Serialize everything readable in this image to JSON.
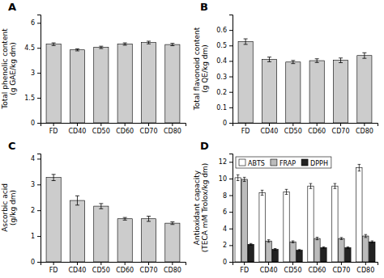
{
  "chart_data": [
    {
      "type": "bar",
      "title": "A",
      "ylabel": "Total phenolic content\n(g GAE/kg dm)",
      "categories": [
        "FD",
        "CD40",
        "CD50",
        "CD60",
        "CD70",
        "CD80"
      ],
      "values": [
        4.72,
        4.38,
        4.53,
        4.73,
        4.82,
        4.7
      ],
      "errors": [
        0.08,
        0.06,
        0.07,
        0.07,
        0.08,
        0.07
      ],
      "color": "#cccccc",
      "ylim": [
        0,
        6.5
      ],
      "yticks": [
        0,
        1.5,
        3,
        4.5,
        6
      ]
    },
    {
      "type": "bar",
      "title": "B",
      "ylabel": "Total flavonoid content\n(g QE/kg dm)",
      "categories": [
        "FD",
        "CD40",
        "CD50",
        "CD60",
        "CD70",
        "CD80"
      ],
      "values": [
        0.525,
        0.41,
        0.393,
        0.402,
        0.404,
        0.435
      ],
      "errors": [
        0.018,
        0.015,
        0.01,
        0.012,
        0.015,
        0.018
      ],
      "color": "#cccccc",
      "ylim": [
        0,
        0.7
      ],
      "yticks": [
        0,
        0.1,
        0.2,
        0.3,
        0.4,
        0.5,
        0.6
      ]
    },
    {
      "type": "bar",
      "title": "C",
      "ylabel": "Ascorbic acid\n(g/kg dm)",
      "categories": [
        "FD",
        "CD40",
        "CD50",
        "CD60",
        "CD70",
        "CD80"
      ],
      "values": [
        3.27,
        2.38,
        2.16,
        1.67,
        1.67,
        1.5
      ],
      "errors": [
        0.12,
        0.18,
        0.1,
        0.05,
        0.1,
        0.05
      ],
      "color": "#cccccc",
      "ylim": [
        0,
        4.2
      ],
      "yticks": [
        0,
        1,
        2,
        3,
        4
      ]
    },
    {
      "type": "bar",
      "title": "D",
      "ylabel": "Antioxidant capacity\n(TECA mM Trolox/kg dm)",
      "categories": [
        "FD",
        "CD40",
        "CD50",
        "CD60",
        "CD70",
        "CD80"
      ],
      "series": [
        {
          "name": "ABTS",
          "color": "#ffffff",
          "values": [
            10.1,
            8.3,
            8.4,
            9.1,
            9.1,
            11.3
          ],
          "errors": [
            0.35,
            0.3,
            0.3,
            0.3,
            0.3,
            0.4
          ]
        },
        {
          "name": "FRAP",
          "color": "#bbbbbb",
          "values": [
            9.9,
            2.5,
            2.4,
            2.8,
            2.8,
            3.1
          ],
          "errors": [
            0.25,
            0.15,
            0.12,
            0.15,
            0.12,
            0.18
          ]
        },
        {
          "name": "DPPH",
          "color": "#222222",
          "values": [
            2.1,
            1.5,
            1.4,
            1.7,
            1.7,
            2.4
          ],
          "errors": [
            0.1,
            0.1,
            0.08,
            0.09,
            0.09,
            0.12
          ]
        }
      ],
      "legend": "upper left",
      "ylim": [
        0,
        13
      ],
      "yticks": [
        0,
        2,
        4,
        6,
        8,
        10,
        12
      ]
    }
  ]
}
